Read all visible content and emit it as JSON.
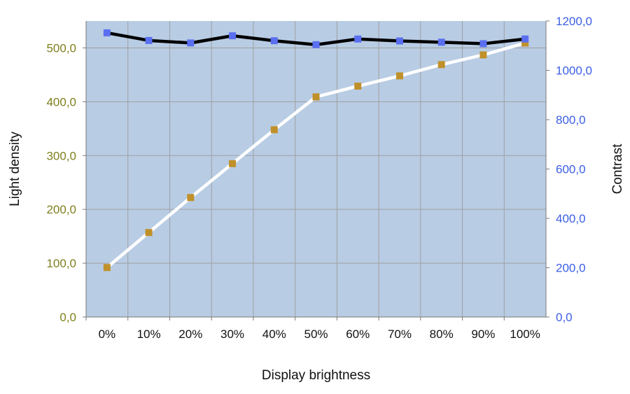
{
  "chart_data": {
    "type": "line",
    "xlabel": "Display brightness",
    "ylabel_left": "Light density",
    "ylabel_right": "Contrast",
    "categories": [
      "0%",
      "10%",
      "20%",
      "30%",
      "40%",
      "50%",
      "60%",
      "70%",
      "80%",
      "90%",
      "100%"
    ],
    "ylim_left": [
      0,
      550
    ],
    "ylim_right": [
      0,
      1200
    ],
    "yticks_left": [
      "0,0",
      "100,0",
      "200,0",
      "300,0",
      "400,0",
      "500,0"
    ],
    "yticks_right": [
      "0,0",
      "200,0",
      "400,0",
      "600,0",
      "800,0",
      "1000,0",
      "1200,0"
    ],
    "grid": true,
    "series": [
      {
        "axis": "left",
        "line_color": "#ffffff",
        "marker_color": "#c0902a",
        "values": [
          92,
          157,
          222,
          285,
          348,
          409,
          429,
          448,
          469,
          487,
          509
        ]
      },
      {
        "axis": "right",
        "line_color": "#000000",
        "marker_color": "#5a6ff0",
        "values": [
          1152,
          1121,
          1111,
          1140,
          1120,
          1104,
          1127,
          1119,
          1114,
          1108,
          1127
        ]
      }
    ],
    "colors": {
      "plot_bg": "#b8cce4",
      "grid": "#a0a0a0",
      "left_tick": "#7f7f1f",
      "right_tick": "#3b5ee6"
    }
  }
}
